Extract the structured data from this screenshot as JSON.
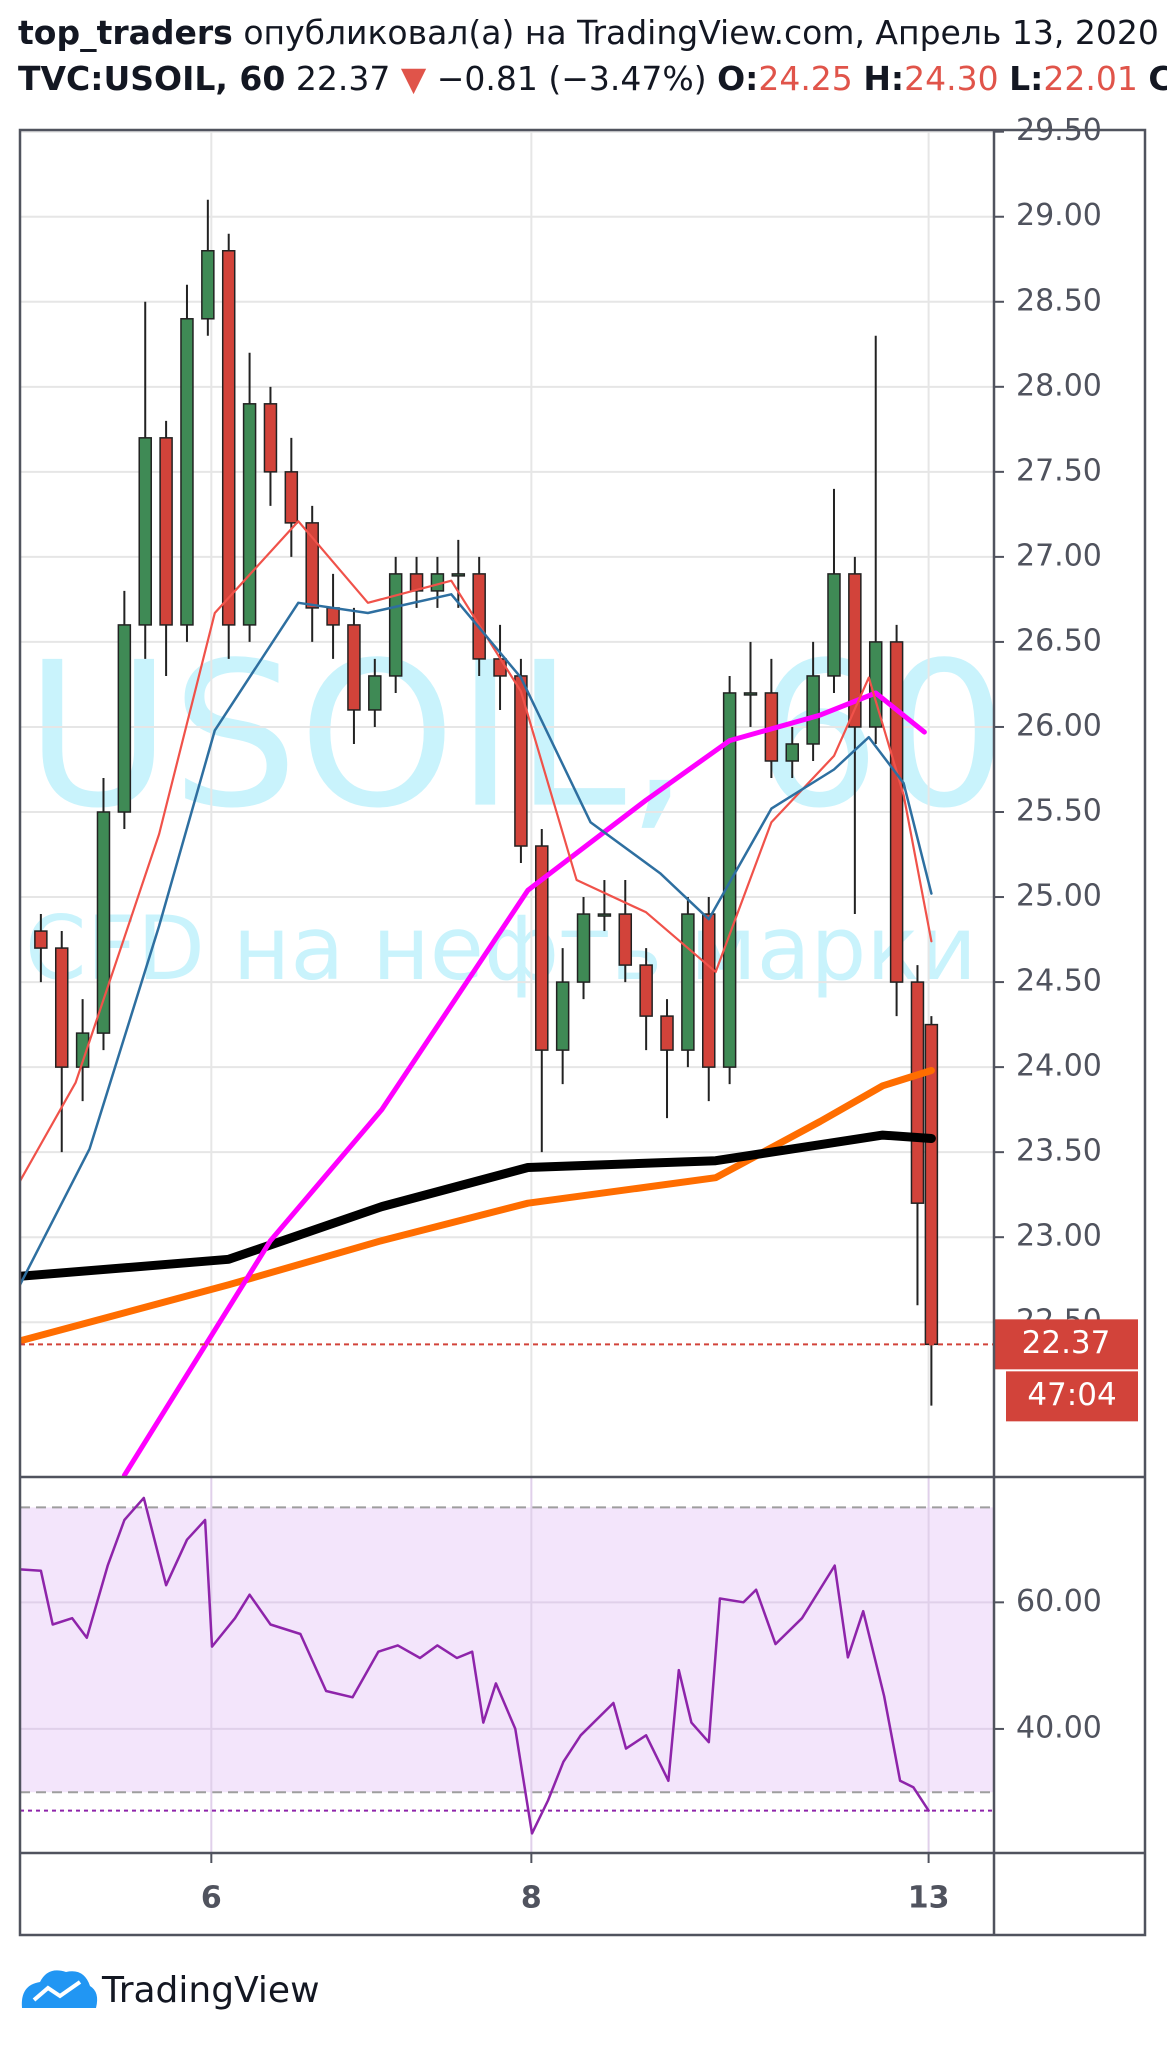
{
  "header": {
    "user": "top_traders",
    "text": "опубликовал(а) на TradingView.com, Апрель 13, 2020",
    "symbol": "TVC:USOIL, 60",
    "price": "22.37",
    "arrow": "▼",
    "change": "−0.81 (−3.47%)",
    "o_label": "O:",
    "o": "24.25",
    "h_label": "H:",
    "h": "24.30",
    "l_label": "L:",
    "l": "22.01",
    "c_label": "C"
  },
  "chart_data": {
    "type": "candlestick",
    "watermark": "USOIL, 60",
    "watermark_subtitle": "CFD на нефть марки WTI",
    "x": [
      3,
      6,
      9,
      12,
      15,
      18,
      21,
      24,
      27,
      30,
      33,
      36,
      39,
      42,
      45,
      48,
      51,
      54,
      57,
      60,
      63,
      66,
      69,
      72,
      75,
      78,
      81,
      84,
      87,
      90,
      93,
      96,
      99,
      102,
      105,
      108,
      111,
      114,
      117,
      120,
      123,
      126,
      129,
      131
    ],
    "open": [
      24.8,
      24.7,
      24.0,
      24.2,
      25.5,
      26.6,
      27.7,
      26.6,
      28.4,
      28.8,
      26.6,
      27.9,
      27.5,
      27.2,
      26.7,
      26.6,
      26.1,
      26.3,
      26.9,
      26.8,
      26.9,
      26.9,
      26.4,
      26.3,
      25.3,
      24.1,
      24.5,
      24.9,
      24.9,
      24.6,
      24.3,
      24.1,
      24.9,
      24.0,
      26.2,
      26.2,
      25.8,
      25.9,
      26.3,
      26.9,
      26.0,
      26.5,
      24.5,
      24.25
    ],
    "high": [
      24.9,
      24.8,
      24.4,
      25.7,
      26.8,
      28.5,
      27.8,
      28.6,
      29.1,
      28.9,
      28.2,
      28.0,
      27.7,
      27.3,
      26.9,
      26.7,
      26.4,
      27.0,
      27.0,
      27.0,
      27.1,
      27.0,
      26.6,
      26.4,
      25.4,
      24.7,
      25.0,
      25.1,
      25.1,
      24.7,
      24.4,
      25.0,
      25.0,
      26.3,
      26.5,
      26.4,
      26.0,
      26.5,
      27.4,
      27.0,
      28.3,
      26.6,
      24.6,
      24.3
    ],
    "low": [
      24.5,
      23.5,
      23.8,
      24.1,
      25.4,
      26.4,
      26.3,
      26.5,
      28.3,
      26.4,
      26.5,
      27.3,
      27.0,
      26.5,
      26.4,
      25.9,
      26.0,
      26.2,
      26.7,
      26.7,
      26.7,
      26.3,
      26.1,
      25.2,
      23.5,
      23.9,
      24.4,
      24.8,
      24.5,
      24.1,
      23.7,
      24.0,
      23.8,
      23.9,
      26.0,
      25.7,
      25.7,
      25.8,
      26.2,
      24.9,
      25.9,
      24.3,
      22.6,
      22.01
    ],
    "close": [
      24.7,
      24.0,
      24.2,
      25.5,
      26.6,
      27.7,
      26.6,
      28.4,
      28.8,
      26.6,
      27.9,
      27.5,
      27.2,
      26.7,
      26.6,
      26.1,
      26.3,
      26.9,
      26.8,
      26.9,
      26.9,
      26.4,
      26.3,
      25.3,
      24.1,
      24.5,
      24.9,
      24.9,
      24.6,
      24.3,
      24.1,
      24.9,
      24.0,
      26.2,
      26.2,
      25.8,
      25.9,
      26.3,
      26.9,
      26.0,
      26.5,
      24.5,
      23.2,
      22.37
    ],
    "up_color": "#3f8a55",
    "down_color": "#d2433a",
    "xlim": [
      0,
      140
    ],
    "xticks": [
      {
        "value": 27.5,
        "label": "6"
      },
      {
        "value": 73.5,
        "label": "8"
      },
      {
        "value": 130.6,
        "label": "13"
      }
    ],
    "ylim": [
      21.59,
      29.51
    ],
    "yticks": [
      {
        "value": 22.5,
        "label": "22.50"
      },
      {
        "value": 23,
        "label": "23.00"
      },
      {
        "value": 23.5,
        "label": "23.50"
      },
      {
        "value": 24,
        "label": "24.00"
      },
      {
        "value": 24.5,
        "label": "24.50"
      },
      {
        "value": 25,
        "label": "25.00"
      },
      {
        "value": 25.5,
        "label": "25.50"
      },
      {
        "value": 26,
        "label": "26.00"
      },
      {
        "value": 26.5,
        "label": "26.50"
      },
      {
        "value": 27,
        "label": "27.00"
      },
      {
        "value": 27.5,
        "label": "27.50"
      },
      {
        "value": 28,
        "label": "28.00"
      },
      {
        "value": 28.5,
        "label": "28.50"
      },
      {
        "value": 29,
        "label": "29.00"
      },
      {
        "value": 29.5,
        "label": "29.50"
      }
    ],
    "grid": true,
    "countdown": "47:04",
    "overlays": [
      {
        "color": "#ff00ff",
        "x": [
          15,
          36,
          52,
          73,
          90,
          102,
          115,
          123,
          130
        ],
        "values": [
          21.6,
          22.98,
          23.75,
          25.04,
          25.57,
          25.92,
          26.07,
          26.2,
          25.97
        ]
      },
      {
        "color": "#ff6d00",
        "x": [
          0,
          30,
          52,
          73,
          100,
          115,
          124,
          131
        ],
        "values": [
          22.39,
          22.72,
          22.98,
          23.2,
          23.35,
          23.68,
          23.89,
          23.98
        ]
      },
      {
        "color": "#000000",
        "x": [
          0,
          30,
          52,
          73,
          100,
          124,
          131
        ],
        "values": [
          22.77,
          22.87,
          23.18,
          23.41,
          23.45,
          23.6,
          23.58
        ]
      },
      {
        "color": "#f0524a",
        "x": [
          0,
          8,
          20,
          28,
          40,
          50,
          62,
          72,
          80,
          90,
          100,
          108,
          117,
          122,
          127,
          131
        ],
        "values": [
          23.33,
          23.91,
          25.37,
          26.67,
          27.21,
          26.73,
          26.86,
          26.21,
          25.1,
          24.91,
          24.56,
          25.44,
          25.83,
          26.29,
          25.6,
          24.74
        ]
      },
      {
        "color": "#2e6fa0",
        "x": [
          0,
          10,
          20,
          28,
          40,
          50,
          62,
          72,
          82,
          92,
          99,
          108,
          117,
          122,
          127,
          131
        ],
        "values": [
          22.72,
          23.52,
          24.83,
          25.98,
          26.73,
          26.67,
          26.78,
          26.29,
          25.44,
          25.14,
          24.87,
          25.52,
          25.75,
          25.94,
          25.67,
          25.02
        ]
      }
    ],
    "rsi": {
      "type": "line",
      "color": "#8e24aa",
      "band_color": "#f3e5fb",
      "ylim": [
        20.4,
        79.8
      ],
      "yticks": [
        {
          "value": 40,
          "label": "40.00"
        },
        {
          "value": 60,
          "label": "60.00"
        }
      ],
      "bands": [
        30,
        75
      ],
      "x": [
        0,
        3,
        4.7,
        7.5,
        9.6,
        12.6,
        15,
        17.8,
        21,
        24,
        26.6,
        27.6,
        30.9,
        33,
        36,
        40.3,
        44,
        47.8,
        51.5,
        54.3,
        57.5,
        60,
        62.8,
        65,
        66.6,
        68.4,
        71.2,
        73.6,
        75.9,
        78.1,
        80.6,
        85.3,
        87.1,
        90,
        93.2,
        94.7,
        96.5,
        99,
        100.6,
        104,
        105.8,
        108.6,
        112.4,
        117.1,
        119,
        121.2,
        124.2,
        126.5,
        128.4,
        130.6
      ],
      "values": [
        65.2,
        65,
        56.5,
        57.5,
        54.4,
        65.8,
        73,
        76.5,
        62.7,
        69.9,
        73,
        53,
        57.5,
        61.2,
        56.5,
        55,
        46,
        45,
        52.2,
        53.2,
        51.2,
        53.2,
        51.2,
        52.2,
        41,
        47.2,
        40,
        23.5,
        28.7,
        34.8,
        39,
        44.1,
        36.9,
        39,
        31.8,
        49.3,
        41,
        37.9,
        60.6,
        60,
        62,
        53.4,
        57.5,
        65.8,
        51.3,
        58.6,
        45.2,
        31.8,
        30.8,
        27.1
      ]
    }
  },
  "footer": {
    "brand": "TradingView"
  }
}
